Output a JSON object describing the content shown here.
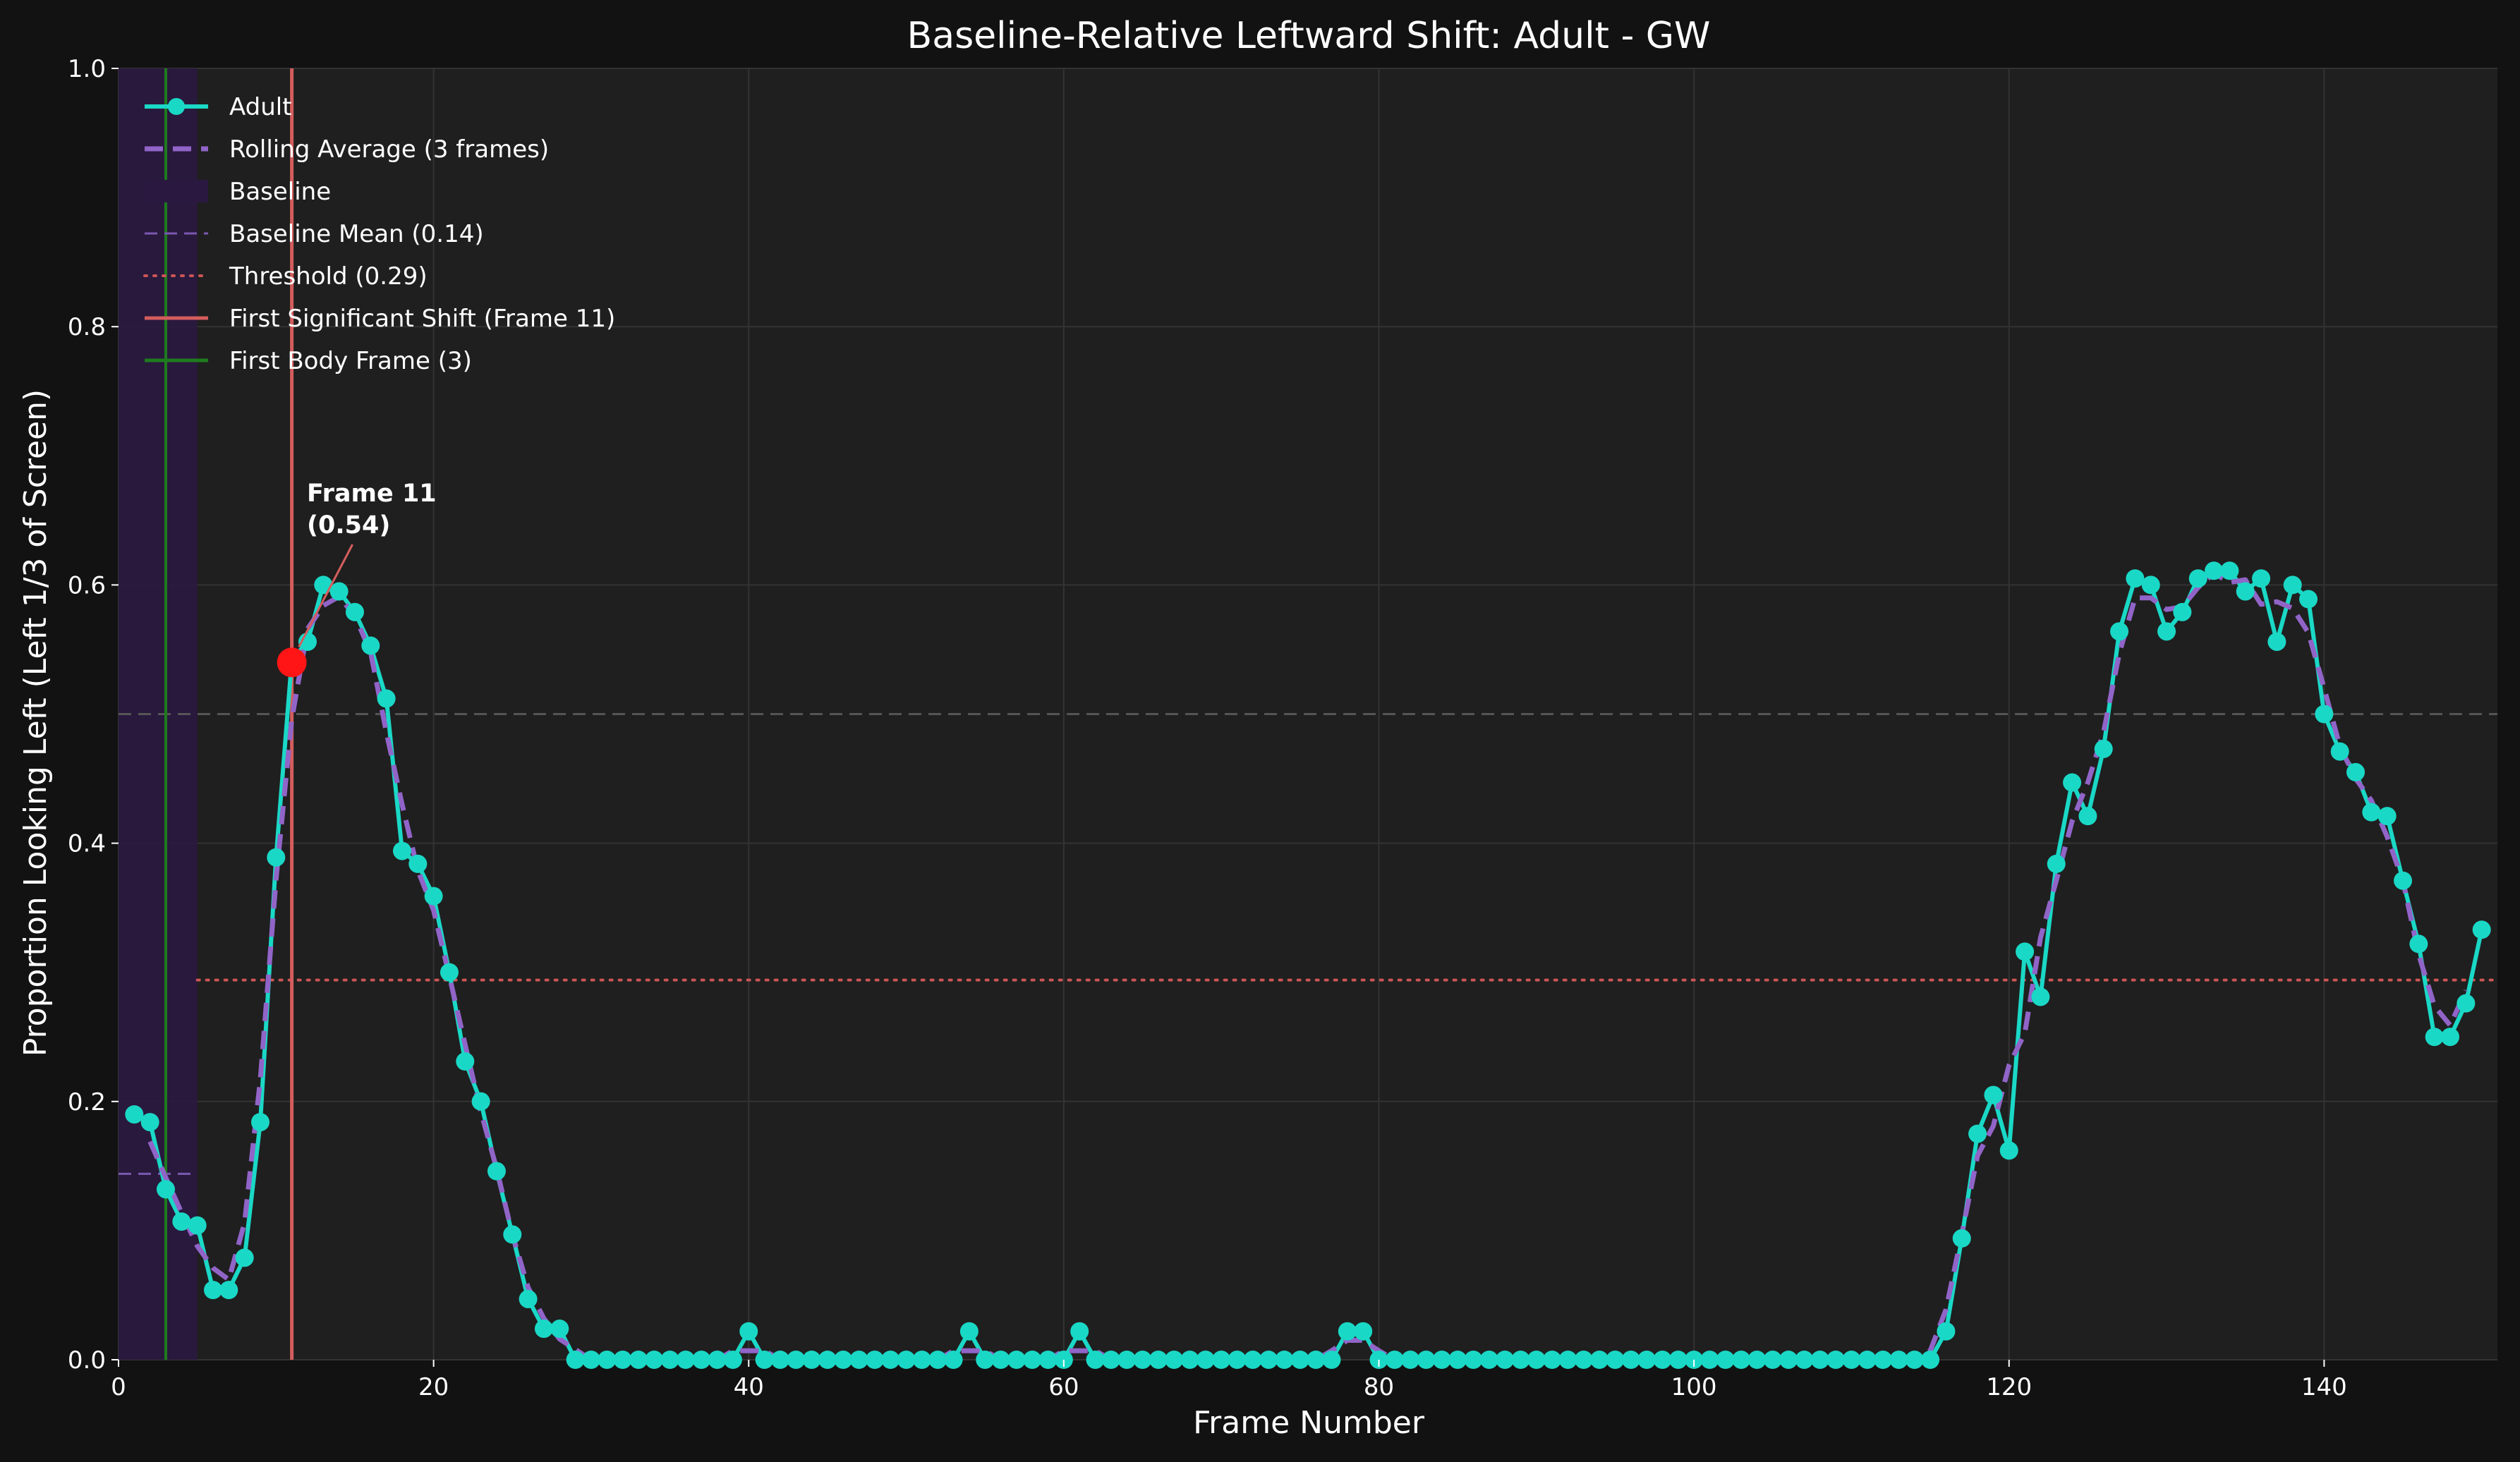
{
  "colors": {
    "figure_bg": "#121212",
    "axes_bg": "#1f1f1f",
    "grid": "#333333",
    "adult": "#1ad8c6",
    "rolling": "#9164c8",
    "baseline_span": "#2a1840",
    "baseline_mean": "#7a58b0",
    "threshold": "#cc5555",
    "shift_line": "#d45d5d",
    "body_line": "#1e7b1e",
    "ref_line": "#555555",
    "marker": "#ff1515"
  },
  "chart_data": {
    "type": "line",
    "title": "Baseline-Relative Leftward Shift: Adult - GW",
    "xlabel": "Frame Number",
    "ylabel": "Proportion Looking Left (Left 1/3 of Screen)",
    "xlim": [
      0,
      151
    ],
    "ylim": [
      0,
      1.0
    ],
    "xticks": [
      0,
      20,
      40,
      60,
      80,
      100,
      120,
      140
    ],
    "yticks": [
      0.0,
      0.2,
      0.4,
      0.6,
      0.8,
      1.0
    ],
    "grid": true,
    "legend_position": "upper-left",
    "legend": [
      {
        "label": "Adult",
        "style": "line-marker",
        "color": "#1ad8c6"
      },
      {
        "label": "Rolling Average (3 frames)",
        "style": "dashed",
        "color": "#9164c8"
      },
      {
        "label": "Baseline",
        "style": "patch",
        "color": "#2a1840"
      },
      {
        "label": "Baseline Mean (0.14)",
        "style": "dashed-thin",
        "color": "#7a58b0"
      },
      {
        "label": "Threshold (0.29)",
        "style": "dotted",
        "color": "#cc5555"
      },
      {
        "label": "First Significant Shift (Frame 11)",
        "style": "solid",
        "color": "#d45d5d"
      },
      {
        "label": "First Body Frame (3)",
        "style": "solid",
        "color": "#1e7b1e"
      }
    ],
    "baseline_span": [
      0,
      5
    ],
    "baseline_mean": 0.144,
    "threshold": 0.294,
    "reference_line": 0.5,
    "first_shift_frame": 11,
    "first_body_frame": 3,
    "annotation": {
      "line1": "Frame 11",
      "line2": "(0.54)",
      "x": 11,
      "y": 0.54
    },
    "series": [
      {
        "name": "Adult",
        "x": [
          1,
          2,
          3,
          4,
          5,
          6,
          7,
          8,
          9,
          10,
          11,
          12,
          13,
          14,
          15,
          16,
          17,
          18,
          19,
          20,
          21,
          22,
          23,
          24,
          25,
          26,
          27,
          28,
          29,
          30,
          31,
          32,
          33,
          34,
          35,
          36,
          37,
          38,
          39,
          40,
          41,
          42,
          43,
          44,
          45,
          46,
          47,
          48,
          49,
          50,
          51,
          52,
          53,
          54,
          55,
          56,
          57,
          58,
          59,
          60,
          61,
          62,
          63,
          64,
          65,
          66,
          67,
          68,
          69,
          70,
          71,
          72,
          73,
          74,
          75,
          76,
          77,
          78,
          79,
          80,
          81,
          82,
          83,
          84,
          85,
          86,
          87,
          88,
          89,
          90,
          91,
          92,
          93,
          94,
          95,
          96,
          97,
          98,
          99,
          100,
          101,
          102,
          103,
          104,
          105,
          106,
          107,
          108,
          109,
          110,
          111,
          112,
          113,
          114,
          115,
          116,
          117,
          118,
          119,
          120,
          121,
          122,
          123,
          124,
          125,
          126,
          127,
          128,
          129,
          130,
          131,
          132,
          133,
          134,
          135,
          136,
          137,
          138,
          139,
          140,
          141,
          142,
          143,
          144,
          145,
          146,
          147,
          148,
          149,
          150
        ],
        "values": [
          0.19,
          0.184,
          0.132,
          0.107,
          0.104,
          0.054,
          0.054,
          0.079,
          0.184,
          0.389,
          0.542,
          0.556,
          0.6,
          0.595,
          0.579,
          0.553,
          0.512,
          0.394,
          0.384,
          0.359,
          0.3,
          0.231,
          0.2,
          0.146,
          0.097,
          0.047,
          0.024,
          0.024,
          0.0,
          0.0,
          0.0,
          0.0,
          0.0,
          0.0,
          0.0,
          0.0,
          0.0,
          0.0,
          0.0,
          0.022,
          0.0,
          0.0,
          0.0,
          0.0,
          0.0,
          0.0,
          0.0,
          0.0,
          0.0,
          0.0,
          0.0,
          0.0,
          0.0,
          0.022,
          0.0,
          0.0,
          0.0,
          0.0,
          0.0,
          0.0,
          0.022,
          0.0,
          0.0,
          0.0,
          0.0,
          0.0,
          0.0,
          0.0,
          0.0,
          0.0,
          0.0,
          0.0,
          0.0,
          0.0,
          0.0,
          0.0,
          0.0,
          0.022,
          0.022,
          0.0,
          0.0,
          0.0,
          0.0,
          0.0,
          0.0,
          0.0,
          0.0,
          0.0,
          0.0,
          0.0,
          0.0,
          0.0,
          0.0,
          0.0,
          0.0,
          0.0,
          0.0,
          0.0,
          0.0,
          0.0,
          0.0,
          0.0,
          0.0,
          0.0,
          0.0,
          0.0,
          0.0,
          0.0,
          0.0,
          0.0,
          0.0,
          0.0,
          0.0,
          0.0,
          0.0,
          0.022,
          0.094,
          0.175,
          0.205,
          0.162,
          0.316,
          0.281,
          0.384,
          0.447,
          0.421,
          0.473,
          0.564,
          0.605,
          0.6,
          0.564,
          0.579,
          0.605,
          0.611,
          0.611,
          0.595,
          0.605,
          0.556,
          0.6,
          0.589,
          0.5,
          0.471,
          0.455,
          0.424,
          0.421,
          0.371,
          0.322,
          0.25,
          0.25,
          0.276,
          0.333
        ]
      },
      {
        "name": "Rolling Average (3 frames)",
        "x": [
          2,
          3,
          4,
          5,
          6,
          7,
          8,
          9,
          10,
          11,
          12,
          13,
          14,
          15,
          16,
          17,
          18,
          19,
          20,
          21,
          22,
          23,
          24,
          25,
          26,
          27,
          28,
          29,
          30,
          31,
          32,
          33,
          34,
          35,
          36,
          37,
          38,
          39,
          40,
          41,
          42,
          43,
          44,
          45,
          46,
          47,
          48,
          49,
          50,
          51,
          52,
          53,
          54,
          55,
          56,
          57,
          58,
          59,
          60,
          61,
          62,
          63,
          64,
          65,
          66,
          67,
          68,
          69,
          70,
          71,
          72,
          73,
          74,
          75,
          76,
          77,
          78,
          79,
          80,
          81,
          82,
          83,
          84,
          85,
          86,
          87,
          88,
          89,
          90,
          91,
          92,
          93,
          94,
          95,
          96,
          97,
          98,
          99,
          100,
          101,
          102,
          103,
          104,
          105,
          106,
          107,
          108,
          109,
          110,
          111,
          112,
          113,
          114,
          115,
          116,
          117,
          118,
          119,
          120,
          121,
          122,
          123,
          124,
          125,
          126,
          127,
          128,
          129,
          130,
          131,
          132,
          133,
          134,
          135,
          136,
          137,
          138,
          139,
          140,
          141,
          142,
          143,
          144,
          145,
          146,
          147,
          148,
          149
        ],
        "values": [
          0.169,
          0.141,
          0.114,
          0.088,
          0.071,
          0.062,
          0.106,
          0.217,
          0.372,
          0.496,
          0.566,
          0.584,
          0.591,
          0.576,
          0.548,
          0.486,
          0.43,
          0.379,
          0.348,
          0.297,
          0.244,
          0.192,
          0.148,
          0.097,
          0.056,
          0.032,
          0.016,
          0.008,
          0.0,
          0.0,
          0.0,
          0.0,
          0.0,
          0.0,
          0.0,
          0.0,
          0.0,
          0.007,
          0.007,
          0.007,
          0.0,
          0.0,
          0.0,
          0.0,
          0.0,
          0.0,
          0.0,
          0.0,
          0.0,
          0.0,
          0.0,
          0.007,
          0.007,
          0.007,
          0.0,
          0.0,
          0.0,
          0.0,
          0.007,
          0.007,
          0.007,
          0.0,
          0.0,
          0.0,
          0.0,
          0.0,
          0.0,
          0.0,
          0.0,
          0.0,
          0.0,
          0.0,
          0.0,
          0.0,
          0.0,
          0.007,
          0.015,
          0.015,
          0.007,
          0.0,
          0.0,
          0.0,
          0.0,
          0.0,
          0.0,
          0.0,
          0.0,
          0.0,
          0.0,
          0.0,
          0.0,
          0.0,
          0.0,
          0.0,
          0.0,
          0.0,
          0.0,
          0.0,
          0.0,
          0.0,
          0.0,
          0.0,
          0.0,
          0.0,
          0.0,
          0.0,
          0.0,
          0.0,
          0.0,
          0.0,
          0.0,
          0.0,
          0.0,
          0.007,
          0.039,
          0.097,
          0.158,
          0.181,
          0.228,
          0.253,
          0.327,
          0.371,
          0.417,
          0.447,
          0.486,
          0.547,
          0.59,
          0.59,
          0.581,
          0.583,
          0.598,
          0.609,
          0.602,
          0.604,
          0.585,
          0.587,
          0.582,
          0.563,
          0.52,
          0.475,
          0.45,
          0.433,
          0.405,
          0.371,
          0.314,
          0.274,
          0.259,
          0.286
        ]
      }
    ]
  }
}
